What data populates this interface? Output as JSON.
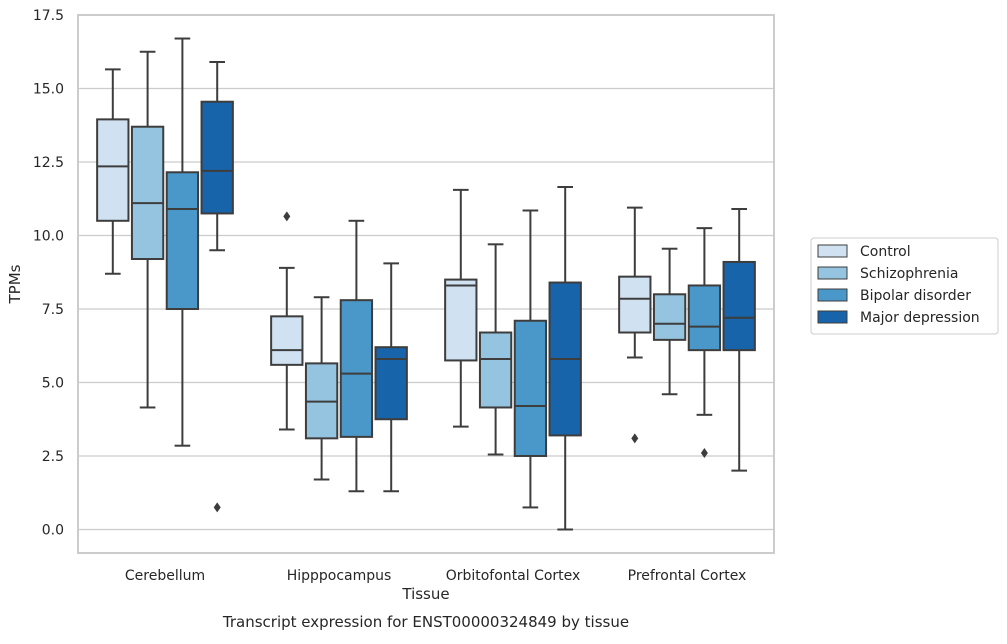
{
  "chart_data": {
    "type": "box",
    "title": "",
    "caption": "Transcript expression for ENST00000324849 by tissue",
    "xlabel": "Tissue",
    "ylabel": "TPMs",
    "ylim": [
      -0.8,
      17.5
    ],
    "yticks": [
      0.0,
      2.5,
      5.0,
      7.5,
      10.0,
      12.5,
      15.0,
      17.5
    ],
    "ytick_labels": [
      "0.0",
      "2.5",
      "5.0",
      "7.5",
      "10.0",
      "12.5",
      "15.0",
      "17.5"
    ],
    "grid": true,
    "legend_position": "right",
    "categories": [
      "Cerebellum",
      "Hipppocampus",
      "Orbitofontal Cortex",
      "Prefrontal Cortex"
    ],
    "series": [
      {
        "name": "Control",
        "color": "#d0e1f2",
        "boxes": [
          {
            "whislo": 8.7,
            "q1": 10.5,
            "med": 12.35,
            "q3": 13.95,
            "whishi": 15.65,
            "fliers": []
          },
          {
            "whislo": 3.4,
            "q1": 5.6,
            "med": 6.1,
            "q3": 7.25,
            "whishi": 8.9,
            "fliers": [
              10.65
            ]
          },
          {
            "whislo": 3.5,
            "q1": 5.75,
            "med": 8.3,
            "q3": 8.5,
            "whishi": 11.55,
            "fliers": []
          },
          {
            "whislo": 5.85,
            "q1": 6.7,
            "med": 7.85,
            "q3": 8.6,
            "whishi": 10.95,
            "fliers": [
              3.1
            ]
          }
        ]
      },
      {
        "name": "Schizophrenia",
        "color": "#94c4df",
        "boxes": [
          {
            "whislo": 4.15,
            "q1": 9.2,
            "med": 11.1,
            "q3": 13.7,
            "whishi": 16.25,
            "fliers": []
          },
          {
            "whislo": 1.7,
            "q1": 3.1,
            "med": 4.35,
            "q3": 5.65,
            "whishi": 7.9,
            "fliers": []
          },
          {
            "whislo": 2.55,
            "q1": 4.15,
            "med": 5.8,
            "q3": 6.7,
            "whishi": 9.7,
            "fliers": []
          },
          {
            "whislo": 4.6,
            "q1": 6.45,
            "med": 7.0,
            "q3": 8.0,
            "whishi": 9.55,
            "fliers": []
          }
        ]
      },
      {
        "name": "Bipolar disorder",
        "color": "#4a98c9",
        "boxes": [
          {
            "whislo": 2.85,
            "q1": 7.5,
            "med": 10.9,
            "q3": 12.15,
            "whishi": 16.7,
            "fliers": []
          },
          {
            "whislo": 1.3,
            "q1": 3.15,
            "med": 5.3,
            "q3": 7.8,
            "whishi": 10.5,
            "fliers": []
          },
          {
            "whislo": 0.75,
            "q1": 2.5,
            "med": 4.2,
            "q3": 7.1,
            "whishi": 10.85,
            "fliers": []
          },
          {
            "whislo": 3.9,
            "q1": 6.1,
            "med": 6.9,
            "q3": 8.3,
            "whishi": 10.25,
            "fliers": [
              2.6
            ]
          }
        ]
      },
      {
        "name": "Major depression",
        "color": "#1764ab",
        "boxes": [
          {
            "whislo": 9.5,
            "q1": 10.75,
            "med": 12.2,
            "q3": 14.55,
            "whishi": 15.9,
            "fliers": [
              0.75
            ]
          },
          {
            "whislo": 1.3,
            "q1": 3.75,
            "med": 5.8,
            "q3": 6.2,
            "whishi": 9.05,
            "fliers": []
          },
          {
            "whislo": 0.0,
            "q1": 3.2,
            "med": 5.8,
            "q3": 8.4,
            "whishi": 11.65,
            "fliers": []
          },
          {
            "whislo": 2.0,
            "q1": 6.1,
            "med": 7.2,
            "q3": 9.1,
            "whishi": 10.9,
            "fliers": []
          }
        ]
      }
    ]
  }
}
